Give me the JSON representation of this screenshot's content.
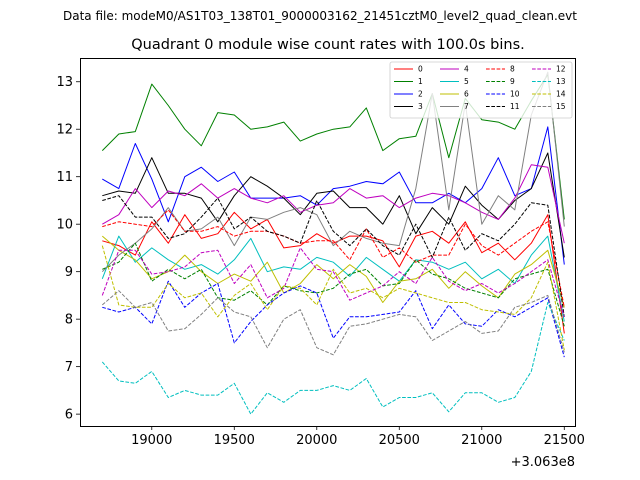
{
  "chart_data": {
    "type": "line",
    "suptitle": "Data file: modeM0/AS1T03_138T01_9000003162_21451cztM0_level2_quad_clean.evt",
    "title": "Quadrant 0 module wise count rates with 100.0s bins.",
    "xlabel": "",
    "ylabel": "",
    "x_offset_label": "+3.063e8",
    "xlim": [
      18565,
      21565
    ],
    "ylim": [
      5.75,
      13.5
    ],
    "xticks": [
      19000,
      19500,
      20000,
      20500,
      21000,
      21500
    ],
    "xtick_labels": [
      "19000",
      "19500",
      "20000",
      "20500",
      "21000",
      "21500"
    ],
    "yticks": [
      6,
      7,
      8,
      9,
      10,
      11,
      12,
      13
    ],
    "ytick_labels": [
      "6",
      "7",
      "8",
      "9",
      "10",
      "11",
      "12",
      "13"
    ],
    "legend_position": "top-right",
    "x": [
      18700,
      18800,
      18900,
      19000,
      19100,
      19200,
      19300,
      19400,
      19500,
      19600,
      19700,
      19800,
      19900,
      20000,
      20100,
      20200,
      20300,
      20400,
      20500,
      20600,
      20700,
      20800,
      20900,
      21000,
      21100,
      21200,
      21300,
      21400,
      21500
    ],
    "series": [
      {
        "name": "0",
        "color": "#ff0000",
        "dash": "solid",
        "values": [
          9.65,
          9.55,
          9.35,
          10.05,
          9.6,
          10.2,
          9.7,
          9.8,
          10.25,
          9.9,
          10.1,
          9.5,
          9.55,
          9.8,
          9.6,
          9.75,
          9.75,
          9.65,
          9.1,
          9.75,
          9.85,
          9.6,
          10.05,
          9.4,
          9.6,
          9.25,
          9.6,
          10.2,
          7.7
        ]
      },
      {
        "name": "1",
        "color": "#008000",
        "dash": "solid",
        "values": [
          11.55,
          11.9,
          11.95,
          12.95,
          12.5,
          12.0,
          11.65,
          12.35,
          12.3,
          12.0,
          12.05,
          12.15,
          11.75,
          11.9,
          12.0,
          12.05,
          12.45,
          11.55,
          11.8,
          11.85,
          12.75,
          11.4,
          12.65,
          12.2,
          12.15,
          12.0,
          12.6,
          13.15,
          10.1
        ]
      },
      {
        "name": "2",
        "color": "#0000ff",
        "dash": "solid",
        "values": [
          10.95,
          10.75,
          11.7,
          10.95,
          10.05,
          11.0,
          11.2,
          10.9,
          11.1,
          10.55,
          10.55,
          10.55,
          10.6,
          10.4,
          10.75,
          10.8,
          10.9,
          10.85,
          11.1,
          10.45,
          10.45,
          10.65,
          10.45,
          10.75,
          11.4,
          10.6,
          10.75,
          12.05,
          9.15
        ]
      },
      {
        "name": "3",
        "color": "#000000",
        "dash": "solid",
        "values": [
          10.6,
          10.7,
          10.65,
          11.4,
          10.65,
          10.65,
          10.55,
          10.05,
          10.6,
          11.0,
          10.8,
          10.55,
          10.2,
          10.65,
          10.7,
          10.35,
          10.35,
          10.0,
          10.6,
          9.8,
          10.35,
          10.0,
          10.8,
          10.4,
          10.1,
          10.5,
          10.75,
          11.5,
          9.3
        ]
      },
      {
        "name": "4",
        "color": "#bf00bf",
        "dash": "solid",
        "values": [
          10.0,
          10.2,
          10.75,
          10.35,
          10.7,
          10.6,
          10.85,
          10.55,
          10.75,
          10.55,
          10.45,
          10.6,
          10.25,
          10.4,
          10.45,
          10.75,
          10.55,
          10.6,
          10.35,
          10.55,
          10.65,
          10.6,
          10.45,
          10.25,
          10.1,
          10.55,
          11.25,
          11.2,
          9.6
        ]
      },
      {
        "name": "5",
        "color": "#00bfbf",
        "dash": "solid",
        "values": [
          8.85,
          9.75,
          9.2,
          9.5,
          9.25,
          9.05,
          9.15,
          8.95,
          9.25,
          9.7,
          9.0,
          9.1,
          9.05,
          9.3,
          9.2,
          8.9,
          9.3,
          9.05,
          8.8,
          9.25,
          9.2,
          9.05,
          9.2,
          8.85,
          9.05,
          8.75,
          9.35,
          9.75,
          7.95
        ]
      },
      {
        "name": "6",
        "color": "#bfbf00",
        "dash": "solid",
        "values": [
          9.75,
          9.45,
          9.25,
          8.85,
          9.0,
          9.35,
          9.0,
          8.75,
          8.95,
          8.8,
          9.2,
          8.55,
          8.75,
          9.15,
          8.85,
          9.15,
          8.9,
          8.35,
          8.8,
          8.85,
          9.05,
          8.65,
          9.0,
          8.7,
          8.45,
          8.95,
          9.15,
          9.45,
          8.25
        ]
      },
      {
        "name": "7",
        "color": "#808080",
        "dash": "solid",
        "values": [
          9.0,
          9.35,
          9.6,
          9.9,
          10.35,
          9.85,
          9.9,
          10.15,
          9.55,
          10.15,
          10.1,
          10.25,
          10.35,
          10.2,
          9.55,
          9.85,
          9.7,
          9.6,
          9.55,
          10.75,
          12.75,
          10.3,
          12.55,
          10.0,
          10.6,
          10.3,
          12.3,
          13.2,
          9.95
        ]
      },
      {
        "name": "8",
        "color": "#ff0000",
        "dash": "dashed",
        "values": [
          9.95,
          10.05,
          10.0,
          9.95,
          10.3,
          9.85,
          9.85,
          9.95,
          9.75,
          9.85,
          9.85,
          9.75,
          9.6,
          9.65,
          9.65,
          9.25,
          9.9,
          9.3,
          9.5,
          9.2,
          9.35,
          9.35,
          10.0,
          9.55,
          9.35,
          9.6,
          9.85,
          10.05,
          8.25
        ]
      },
      {
        "name": "9",
        "color": "#008000",
        "dash": "dashed",
        "values": [
          9.05,
          9.2,
          9.6,
          8.8,
          9.05,
          8.85,
          9.05,
          8.45,
          8.4,
          8.6,
          8.3,
          8.7,
          8.6,
          8.55,
          8.65,
          8.95,
          9.05,
          8.7,
          8.75,
          9.25,
          8.95,
          8.85,
          8.65,
          8.55,
          8.45,
          8.85,
          8.95,
          9.05,
          7.85
        ]
      },
      {
        "name": "10",
        "color": "#0000ff",
        "dash": "dashed",
        "values": [
          8.25,
          8.15,
          8.25,
          7.9,
          8.8,
          8.25,
          8.55,
          8.75,
          7.5,
          7.95,
          8.3,
          8.55,
          8.7,
          8.55,
          7.6,
          8.05,
          8.05,
          8.1,
          8.15,
          8.6,
          7.8,
          8.3,
          7.9,
          7.85,
          8.2,
          8.05,
          8.25,
          8.45,
          7.2
        ]
      },
      {
        "name": "11",
        "color": "#000000",
        "dash": "dashed",
        "values": [
          10.5,
          10.6,
          10.15,
          10.15,
          9.7,
          9.8,
          10.15,
          10.55,
          9.9,
          10.15,
          9.85,
          9.75,
          9.6,
          10.5,
          9.85,
          9.55,
          9.9,
          9.55,
          9.35,
          10.0,
          9.3,
          10.15,
          9.45,
          9.8,
          9.65,
          10.0,
          10.45,
          10.4,
          8.05
        ]
      },
      {
        "name": "12",
        "color": "#bf00bf",
        "dash": "dashed",
        "values": [
          8.5,
          9.45,
          9.45,
          8.95,
          9.0,
          9.1,
          9.4,
          9.45,
          8.75,
          9.15,
          8.45,
          8.65,
          9.5,
          9.05,
          9.0,
          8.4,
          8.55,
          8.7,
          9.0,
          8.75,
          9.3,
          8.8,
          8.6,
          8.75,
          8.55,
          8.75,
          9.0,
          9.25,
          8.05
        ]
      },
      {
        "name": "13",
        "color": "#00bfbf",
        "dash": "dashed",
        "values": [
          7.1,
          6.7,
          6.65,
          6.9,
          6.35,
          6.5,
          6.4,
          6.4,
          6.65,
          6.0,
          6.45,
          6.25,
          6.5,
          6.5,
          6.6,
          6.5,
          6.75,
          6.15,
          6.35,
          6.35,
          6.45,
          6.05,
          6.45,
          6.45,
          6.25,
          6.35,
          6.9,
          8.35,
          7.55
        ]
      },
      {
        "name": "14",
        "color": "#bfbf00",
        "dash": "dashed",
        "values": [
          9.55,
          8.3,
          8.25,
          8.25,
          8.75,
          8.45,
          8.55,
          8.05,
          8.5,
          8.75,
          8.2,
          8.7,
          8.65,
          8.3,
          9.05,
          8.55,
          8.65,
          8.45,
          8.65,
          8.55,
          8.45,
          8.35,
          8.35,
          8.2,
          8.15,
          8.1,
          8.45,
          9.2,
          7.35
        ]
      },
      {
        "name": "15",
        "color": "#808080",
        "dash": "dashed",
        "values": [
          8.3,
          8.6,
          8.25,
          8.35,
          7.75,
          7.8,
          8.1,
          8.45,
          8.15,
          8.05,
          7.4,
          8.0,
          8.2,
          7.4,
          7.25,
          7.85,
          7.9,
          8.0,
          8.1,
          8.05,
          7.55,
          7.75,
          7.95,
          7.7,
          7.75,
          8.25,
          8.35,
          8.5,
          7.3
        ]
      }
    ]
  }
}
